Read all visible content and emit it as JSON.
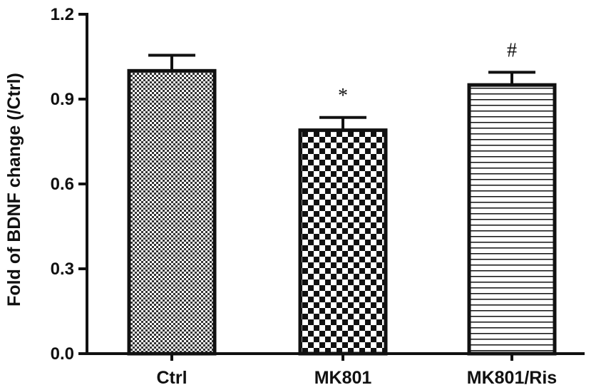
{
  "chart_data": {
    "type": "bar",
    "title": "",
    "xlabel": "",
    "ylabel": "Fold of BDNF change (/Ctrl)",
    "ylim": [
      0,
      1.2
    ],
    "yticks": [
      "0.0",
      "0.3",
      "0.6",
      "0.9",
      "1.2"
    ],
    "categories": [
      "Ctrl",
      "MK801",
      "MK801/Ris"
    ],
    "values": [
      1.0,
      0.79,
      0.95
    ],
    "errors": [
      0.055,
      0.045,
      0.045
    ],
    "annotations": [
      "",
      "*",
      "#"
    ],
    "patterns": [
      "fine-checker",
      "checkerboard",
      "horizontal-lines"
    ],
    "colors": {
      "bar_edge": "#111111",
      "fill": "#111111",
      "background": "#ffffff"
    },
    "grid": false
  }
}
